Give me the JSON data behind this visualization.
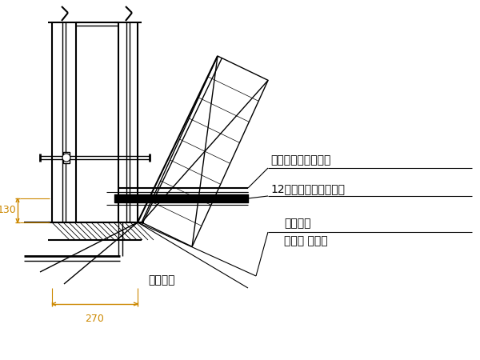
{
  "bg_color": "#ffffff",
  "line_color": "#000000",
  "dim_color": "#cc8800",
  "text_color": "#000000",
  "label_130": "130",
  "label_270": "270",
  "label_outer_rod": "外连杆（周转使用）",
  "label_channel": "12号槽钢（周转使用）",
  "label_nut": "连接螺母",
  "label_nut2": "（周转 使用）",
  "label_anchor": "地脚螺栓",
  "figsize": [
    6.0,
    4.5
  ],
  "dpi": 100
}
